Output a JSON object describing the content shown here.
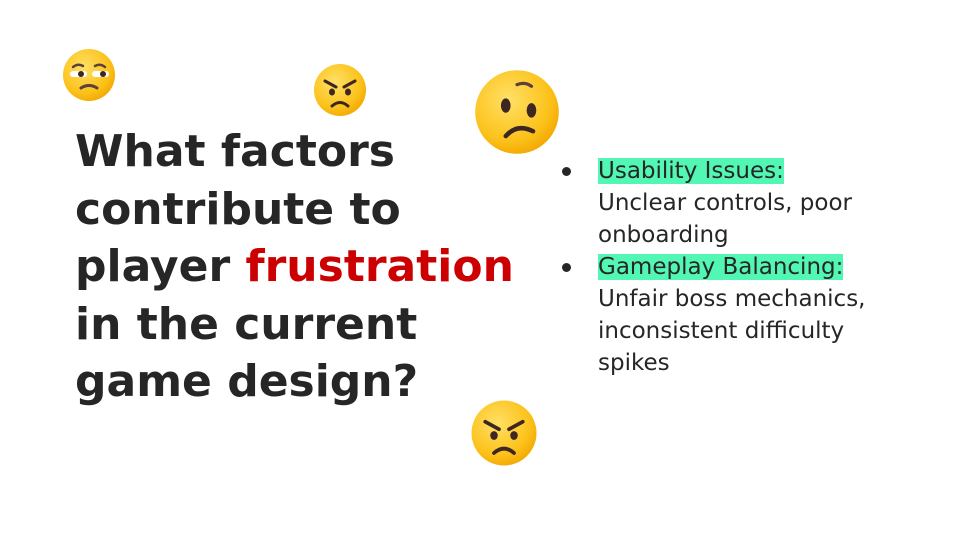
{
  "slide": {
    "heading": {
      "line1": "What factors",
      "line2": "contribute to",
      "line3_prefix": "player ",
      "line3_emphasis": "frustration",
      "line4": "in the current",
      "line5": "game design?"
    },
    "bullets": [
      {
        "highlight": "Usability Issues:",
        "line1": "Unclear controls, poor",
        "line2": "onboarding"
      },
      {
        "highlight": "Gameplay Balancing:",
        "line1": "Unfair boss mechanics,",
        "line2": "inconsistent difficulty",
        "line3": "spikes"
      }
    ],
    "emojis": [
      "unamused-face-icon",
      "angry-face-icon",
      "confused-face-icon",
      "angry-face-icon"
    ],
    "colors": {
      "text": "#262626",
      "emphasis": "#cc0000",
      "highlight": "#52f7b4",
      "emoji_yellow": "#ffcc33"
    }
  }
}
